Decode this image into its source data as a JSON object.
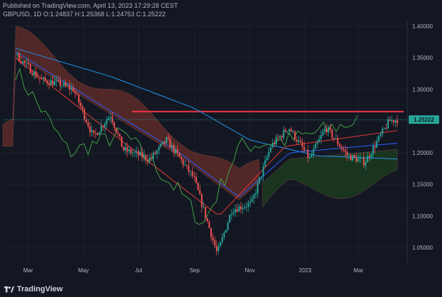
{
  "header": {
    "published": "Published on TradingView.com, April 13, 2023 17:29:28 CEST",
    "symbol": "GBPUSD",
    "interval": "1D",
    "ohlc": {
      "O": "1.24837",
      "H": "1.25368",
      "L": "1.24753",
      "C": "1.25222"
    }
  },
  "brand": {
    "name": "TradingView",
    "icon": "tradingview-logo-icon"
  },
  "colors": {
    "background": "#131722",
    "grid": "#1e222d",
    "up": "#26a69a",
    "down": "#ef5350",
    "last_price": "#26a69a",
    "resistance": "#f23645",
    "sma_blue_long": "#2196f3",
    "sma_blue_short": "#2962ff",
    "ma_red": "#e53935",
    "lagging_span": "#43a047",
    "cloud_bear": "#5d2a28",
    "cloud_bull": "#1b3a1f"
  },
  "chart_data": {
    "type": "candlestick",
    "symbol": "GBPUSD",
    "interval": "1D",
    "ylim": [
      1.03,
      1.41
    ],
    "y_ticks": [
      "1.40000",
      "1.35000",
      "1.30000",
      "1.25000",
      "1.20000",
      "1.15000",
      "1.10000",
      "1.05000"
    ],
    "x_ticks": [
      "Mar",
      "May",
      "Jul",
      "Sep",
      "Nov",
      "2023",
      "Mar"
    ],
    "last_price": "1.25222",
    "resistance_level": 1.265,
    "price_path": [
      [
        "2022-02-15",
        1.355
      ],
      [
        "2022-03-15",
        1.315
      ],
      [
        "2022-04-01",
        1.31
      ],
      [
        "2022-04-20",
        1.3
      ],
      [
        "2022-05-12",
        1.225
      ],
      [
        "2022-05-31",
        1.26
      ],
      [
        "2022-06-14",
        1.205
      ],
      [
        "2022-07-14",
        1.19
      ],
      [
        "2022-08-01",
        1.22
      ],
      [
        "2022-08-31",
        1.16
      ],
      [
        "2022-09-26",
        1.04
      ],
      [
        "2022-10-12",
        1.11
      ],
      [
        "2022-11-03",
        1.12
      ],
      [
        "2022-11-24",
        1.21
      ],
      [
        "2022-12-14",
        1.24
      ],
      [
        "2023-01-06",
        1.19
      ],
      [
        "2023-01-24",
        1.24
      ],
      [
        "2023-02-17",
        1.195
      ],
      [
        "2023-03-08",
        1.185
      ],
      [
        "2023-04-04",
        1.25
      ],
      [
        "2023-04-13",
        1.25222
      ]
    ],
    "series": [
      {
        "name": "",
        "kind": "long moving average (light blue)",
        "points": [
          [
            "2022-02-15",
            1.365
          ],
          [
            "2022-06-01",
            1.32
          ],
          [
            "2022-09-01",
            1.27
          ],
          [
            "2022-11-01",
            1.22
          ],
          [
            "2023-01-15",
            1.195
          ],
          [
            "2023-04-13",
            1.19
          ]
        ]
      },
      {
        "name": "",
        "kind": "medium moving average (blue)",
        "points": [
          [
            "2022-02-15",
            1.36
          ],
          [
            "2022-05-15",
            1.28
          ],
          [
            "2022-08-15",
            1.2
          ],
          [
            "2022-10-20",
            1.13
          ],
          [
            "2022-12-15",
            1.2
          ],
          [
            "2023-04-13",
            1.215
          ]
        ]
      },
      {
        "name": "",
        "kind": "short moving average (red)",
        "points": [
          [
            "2022-02-15",
            1.35
          ],
          [
            "2022-05-15",
            1.25
          ],
          [
            "2022-09-28",
            1.1
          ],
          [
            "2022-12-10",
            1.21
          ],
          [
            "2023-04-13",
            1.235
          ]
        ]
      },
      {
        "name": "",
        "kind": "lagging span (green)",
        "points": [
          [
            "2022-02-15",
            1.33
          ],
          [
            "2022-03-15",
            1.27
          ],
          [
            "2022-04-15",
            1.2
          ],
          [
            "2022-06-15",
            1.23
          ],
          [
            "2022-08-20",
            1.13
          ],
          [
            "2022-09-10",
            1.085
          ],
          [
            "2022-10-20",
            1.21
          ],
          [
            "2022-12-15",
            1.22
          ],
          [
            "2023-02-28",
            1.25
          ]
        ]
      }
    ]
  }
}
